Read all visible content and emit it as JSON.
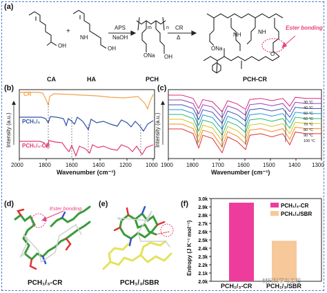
{
  "panels": {
    "a": {
      "label": "(a)",
      "names": [
        "CA",
        "HA",
        "PCH",
        "PCH-CR"
      ],
      "reagents_top": "APS",
      "reagents_bottom": "NaOH",
      "cr": "CR",
      "delta": "Δ",
      "ester": "Ester bonding",
      "groups": {
        "oh": "OH",
        "nh": "NH",
        "ona": "ONa",
        "o": "O",
        "h": "H",
        "m": "m",
        "n": "n",
        "plus": "+"
      }
    },
    "b": {
      "label": "(b)",
      "xlabel": "Wavenumber (cm⁻¹)",
      "ylabel": "Intensity (a.u.)",
      "xticks": [
        "2000",
        "1800",
        "1600",
        "1400",
        "1200",
        "1000"
      ],
      "series_labels": [
        "CR",
        "PCH₁/₃",
        "PCH₁/₃-CR"
      ]
    },
    "c": {
      "label": "(c)",
      "xlabel": "Wavenumber (cm⁻¹)",
      "ylabel": "Intensity (a.u.)",
      "xticks": [
        "1900",
        "1800",
        "1700",
        "1600",
        "1500",
        "1400",
        "1300"
      ],
      "temps": [
        "30 °C",
        "40 °C",
        "50 °C",
        "60 °C",
        "70 °C",
        "80 °C",
        "90 °C",
        "100 °C"
      ]
    },
    "d": {
      "label": "(d)",
      "caption": "PCH₁/₃-CR",
      "ester": "Ester bonding"
    },
    "e": {
      "label": "(e)",
      "caption": "PCH₁/₃/SBR"
    },
    "f": {
      "label": "(f)",
      "ylabel": "Entropy (J K⁻¹ mol⁻¹)",
      "yticks": [
        "3.0k",
        "2.9k",
        "2.8k",
        "2.7k",
        "2.6k",
        "2.5k",
        "2.4k",
        "2.3k",
        "2.2k",
        "2.1k",
        "2.0k"
      ]
    }
  },
  "chart_data": {
    "type": "bar",
    "categories": [
      "PCH₁/₃-CR",
      "PCH₁/₃/SBR"
    ],
    "values": [
      2950,
      2490
    ],
    "ylim": [
      2000,
      3000
    ],
    "colors": [
      "#ee3c9c",
      "#f6c89a"
    ],
    "legend": [
      "PCH₁/₃-CR",
      "PCH₁/₃/SBR"
    ],
    "legend_position": "top-right"
  },
  "watermark": "材料科学与工程"
}
